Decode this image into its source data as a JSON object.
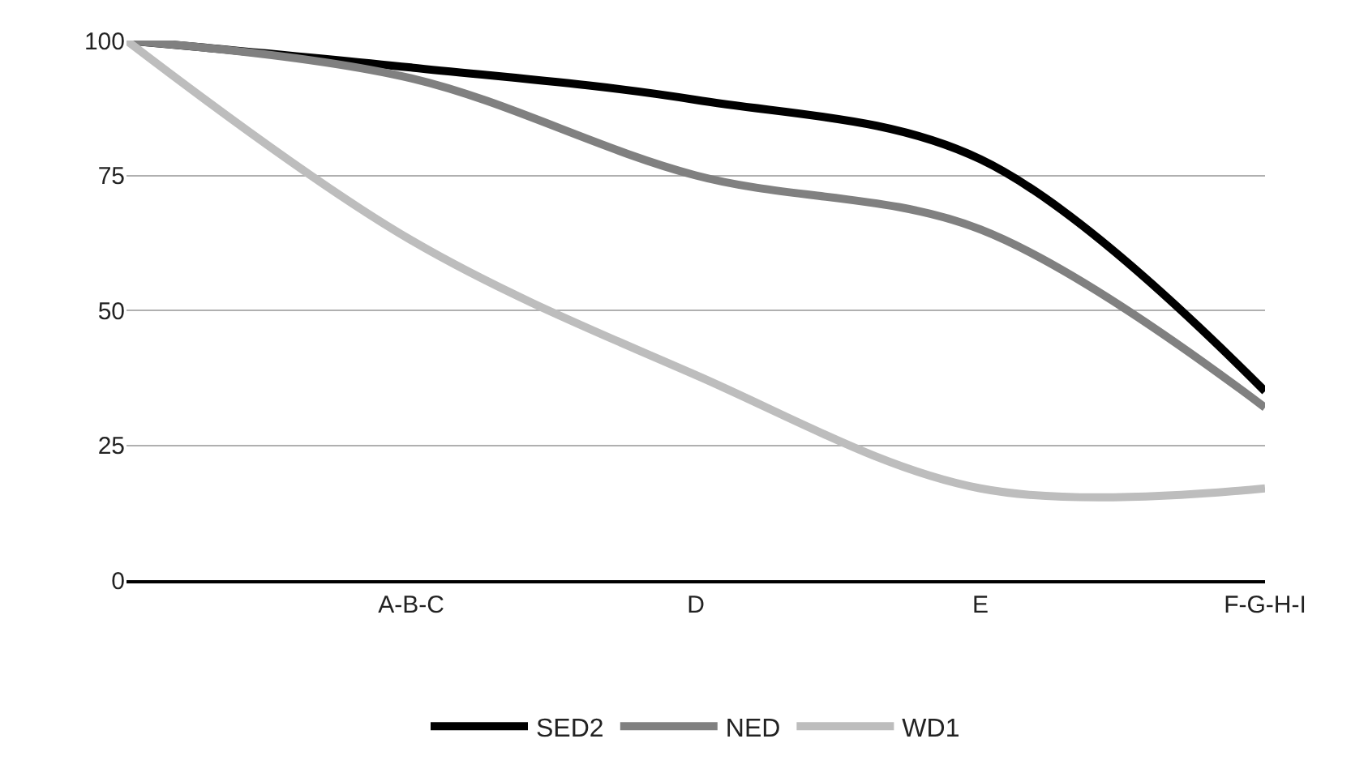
{
  "chart_data": {
    "type": "line",
    "categories": [
      null,
      "A-B-C",
      "D",
      "E",
      "F-G-H-I"
    ],
    "series": [
      {
        "name": "SED2",
        "color": "#000000",
        "values": [
          100,
          95,
          89,
          78,
          35
        ]
      },
      {
        "name": "NED",
        "color": "#808080",
        "values": [
          100,
          93,
          75,
          65,
          32
        ]
      },
      {
        "name": "WD1",
        "color": "#bdbdbd",
        "values": [
          100,
          63,
          38,
          17,
          17
        ]
      }
    ],
    "ylim": [
      0,
      100
    ],
    "yticks": [
      0,
      25,
      50,
      75,
      100
    ],
    "grid": "y",
    "legend": "bottom",
    "marker": "none",
    "line_style": "solid"
  }
}
